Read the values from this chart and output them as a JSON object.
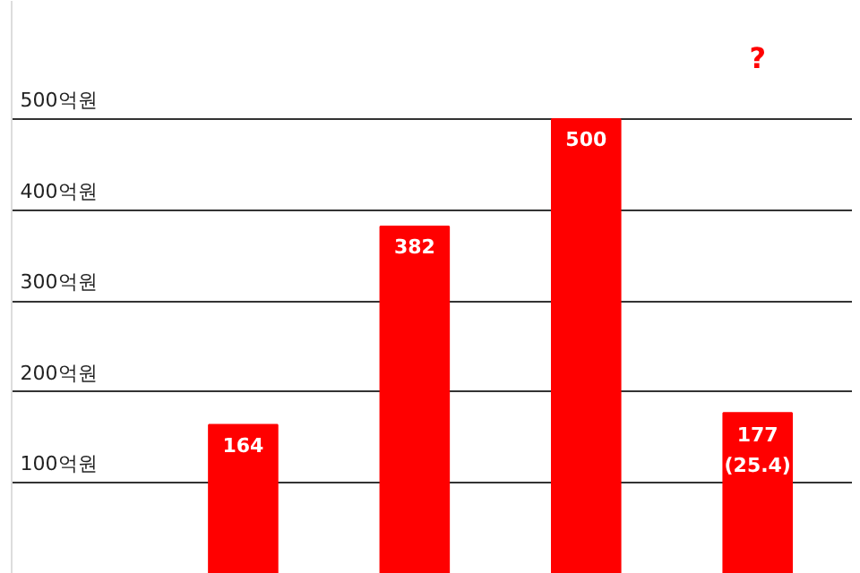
{
  "chart_data": {
    "type": "bar",
    "categories": [
      null,
      null,
      null,
      null
    ],
    "values": [
      164,
      382,
      500,
      177
    ],
    "value_labels": [
      "164",
      "382",
      "500",
      "177\n(25.4)"
    ],
    "color": "#ff0000",
    "ylim": [
      0,
      630
    ],
    "yticks": [
      {
        "value": 100,
        "label": "100억원"
      },
      {
        "value": 200,
        "label": "200억원"
      },
      {
        "value": 300,
        "label": "300억원"
      },
      {
        "value": 400,
        "label": "400억원"
      },
      {
        "value": 500,
        "label": "500억원"
      }
    ],
    "grid": "y",
    "annotations": [
      "?"
    ]
  }
}
